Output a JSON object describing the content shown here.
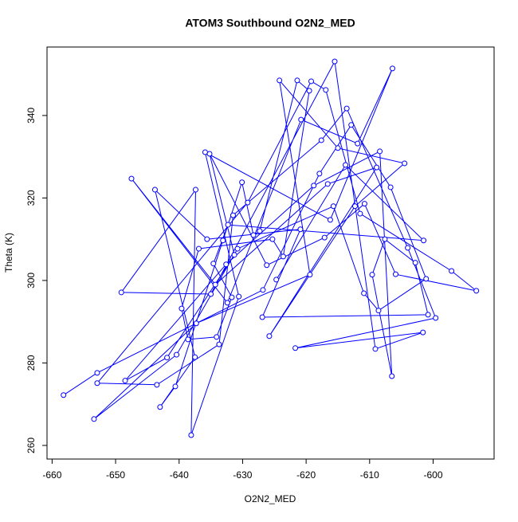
{
  "chart_data": {
    "type": "line",
    "markers": "circle",
    "title": "ATOM3 Southbound O2N2_MED",
    "x_label": "O2N2_MED",
    "y_label": "Theta (K)",
    "color": "#0000ff",
    "xlim": [
      -660.8,
      -590.4
    ],
    "ylim": [
      256.7,
      356.6
    ],
    "xticks": [
      -660,
      -650,
      -640,
      -630,
      -620,
      -610,
      -600
    ],
    "yticks": [
      260,
      280,
      300,
      320,
      340
    ],
    "x": [
      -658.2,
      -652.9,
      -626.8,
      -617.9,
      -612.9,
      -606.7,
      -601.1,
      -608.6,
      -610.9,
      -615.7,
      -630.8,
      -640.4,
      -653.4,
      -637.3,
      -619.4,
      -624.2,
      -615.0,
      -604.5,
      -612.3,
      -625.8,
      -608.9,
      -616.6,
      -634.3,
      -647.5,
      -632.4,
      -620.8,
      -611.9,
      -606.4,
      -616.2,
      -635.9,
      -630.6,
      -638.1,
      -637.4,
      -649.1,
      -635.0,
      -615.5,
      -609.1,
      -601.6,
      -621.7,
      -599.6,
      -604.0,
      -613.6,
      -617.6,
      -631.5,
      -633.7,
      -643.5,
      -652.9,
      -629.2,
      -619.2,
      -616.9,
      -611.5,
      -597.1,
      -593.2,
      -605.9,
      -610.8,
      -617.1,
      -626.2,
      -635.2,
      -631.3,
      -641.9,
      -648.5,
      -632.6,
      -618.8,
      -608.4,
      -606.5,
      -609.6,
      -607.6,
      -602.8,
      -600.8,
      -626.9,
      -620.9,
      -635.6,
      -643.8,
      -637.5,
      -643.0,
      -640.6,
      -633.1,
      -630.1,
      -628.3,
      -627.3,
      -621.4,
      -619.5,
      -623.6,
      -625.3,
      -636.9,
      -639.6,
      -638.6,
      -634.1,
      -631.7,
      -634.6,
      -632.3,
      -601.5,
      -613.8,
      -624.7
    ],
    "values": [
      272.2,
      277.6,
      297.7,
      325.9,
      337.7,
      322.6,
      300.4,
      292.7,
      296.9,
      318.0,
      307.7,
      282.0,
      266.4,
      289.6,
      301.4,
      348.5,
      332.1,
      328.4,
      318.0,
      286.5,
      327.4,
      323.4,
      299.0,
      324.7,
      294.6,
      339.0,
      333.2,
      351.4,
      314.7,
      331.1,
      296.1,
      262.5,
      322.0,
      297.1,
      296.7,
      353.1,
      283.4,
      287.4,
      283.6,
      290.9,
      307.9,
      341.7,
      334.0,
      315.8,
      284.5,
      274.7,
      275.1,
      318.9,
      348.3,
      346.2,
      316.2,
      302.3,
      297.5,
      301.5,
      318.6,
      310.4,
      303.7,
      330.7,
      306.2,
      281.3,
      275.7,
      303.9,
      323.0,
      331.3,
      276.8,
      301.4,
      310.0,
      304.3,
      291.7,
      291.1,
      312.4,
      310.0,
      322.0,
      281.4,
      269.3,
      274.3,
      309.7,
      323.8,
      311.0,
      312.0,
      348.5,
      346.0,
      305.8,
      310.0,
      307.7,
      293.2,
      285.7,
      286.3,
      295.9,
      304.1,
      313.5,
      309.7,
      328.0,
      300.2
    ]
  }
}
